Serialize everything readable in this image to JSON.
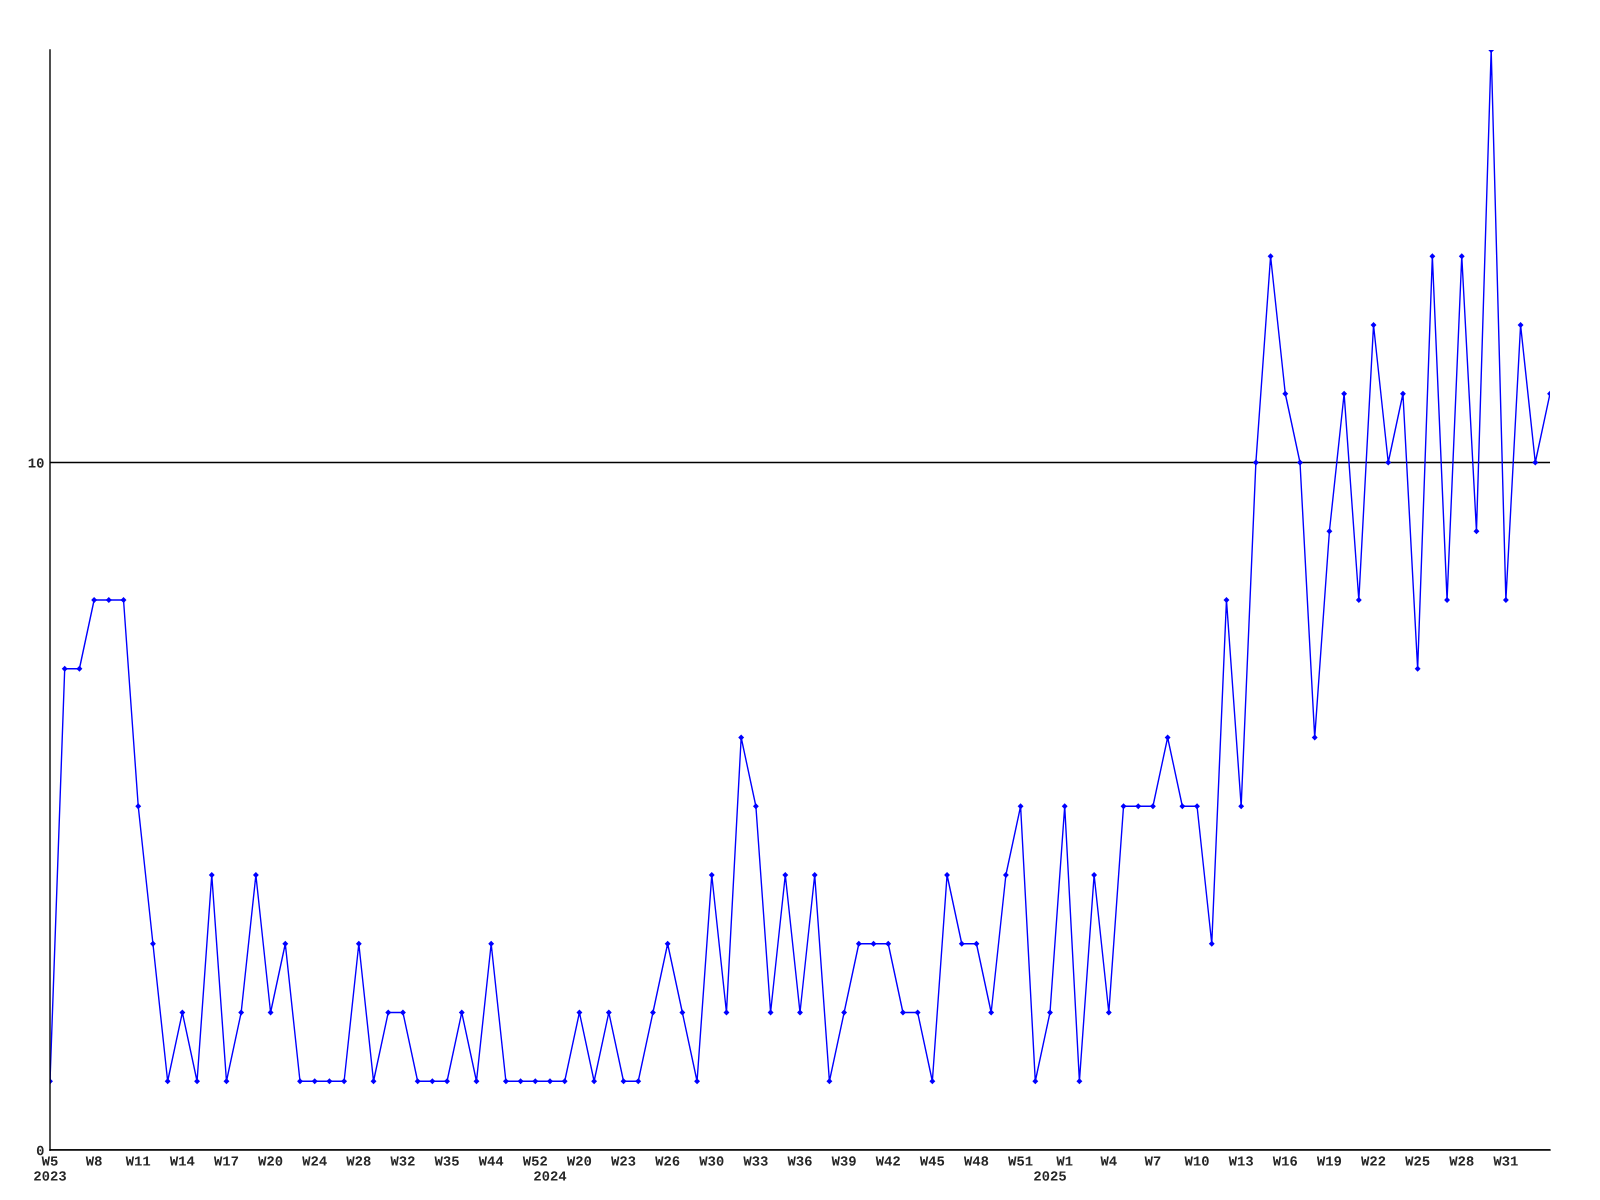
{
  "chart_data": {
    "type": "line",
    "categories": [
      "W5\n2023",
      null,
      null,
      "W8",
      null,
      null,
      "W11",
      null,
      null,
      "W14",
      null,
      null,
      "W17",
      null,
      null,
      "W20",
      null,
      null,
      "W24",
      null,
      null,
      "W28",
      null,
      null,
      "W32",
      null,
      null,
      "W35",
      null,
      null,
      "W44",
      null,
      null,
      "W52",
      "\n2024",
      null,
      "W20",
      null,
      null,
      "W23",
      null,
      null,
      "W26",
      null,
      null,
      "W30",
      null,
      null,
      "W33",
      null,
      null,
      "W36",
      null,
      null,
      "W39",
      null,
      null,
      "W42",
      null,
      null,
      "W45",
      null,
      null,
      "W48",
      null,
      null,
      "W51",
      null,
      "\n2025",
      "W1",
      null,
      null,
      "W4",
      null,
      null,
      "W7",
      null,
      null,
      "W10",
      null,
      null,
      "W13",
      null,
      null,
      "W16",
      null,
      null,
      "W19",
      null,
      null,
      "W22",
      null,
      null,
      "W25",
      null,
      null,
      "W28",
      null,
      null,
      "W31",
      null,
      null,
      null
    ],
    "series": [
      {
        "color": "#0000ff",
        "values": [
          1,
          7,
          7,
          8,
          8,
          8,
          5,
          3,
          1,
          2,
          1,
          4,
          1,
          2,
          4,
          2,
          3,
          1,
          1,
          1,
          1,
          3,
          1,
          2,
          2,
          1,
          1,
          1,
          2,
          1,
          3,
          1,
          1,
          1,
          1,
          1,
          2,
          1,
          2,
          1,
          1,
          2,
          3,
          2,
          1,
          4,
          2,
          6,
          5,
          2,
          4,
          2,
          4,
          1,
          2,
          3,
          3,
          3,
          2,
          2,
          1,
          4,
          3,
          3,
          2,
          4,
          5,
          1,
          2,
          5,
          1,
          4,
          2,
          5,
          5,
          5,
          6,
          5,
          5,
          3,
          8,
          5,
          10,
          13,
          11,
          10,
          6,
          9,
          11,
          8,
          12,
          10,
          11,
          7,
          13,
          8,
          13,
          9,
          16,
          8,
          12,
          10,
          11
        ]
      }
    ],
    "ylim": [
      0,
      16
    ],
    "yticks": [
      0,
      10
    ],
    "grid": "y",
    "marker": "diamond",
    "line_style": "solid"
  }
}
